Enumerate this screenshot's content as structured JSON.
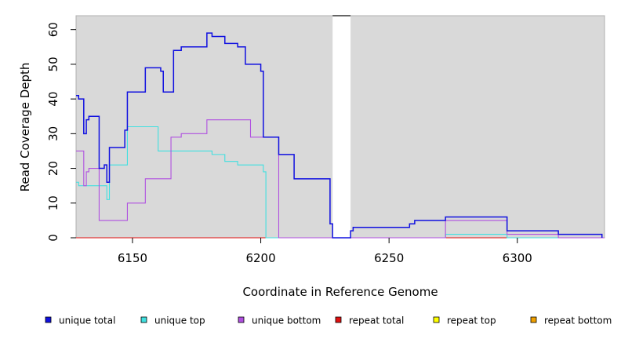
{
  "chart_data": {
    "type": "line",
    "title": "",
    "xlabel": "Coordinate in Reference Genome",
    "ylabel": "Read Coverage Depth",
    "xlim": [
      6128,
      6334
    ],
    "ylim": [
      0,
      64
    ],
    "xticks": [
      6150,
      6200,
      6250,
      6300
    ],
    "yticks": [
      0,
      10,
      20,
      30,
      40,
      50,
      60
    ],
    "background": "#d9d9d9",
    "gap_region": [
      6228,
      6235
    ],
    "grid": false,
    "legend_position": "bottom",
    "series": [
      {
        "name": "unique total",
        "color": "#1010e0",
        "step_points": [
          [
            6128,
            41
          ],
          [
            6129,
            40
          ],
          [
            6130,
            40
          ],
          [
            6131,
            30
          ],
          [
            6132,
            34
          ],
          [
            6133,
            35
          ],
          [
            6137,
            35
          ],
          [
            6137,
            20
          ],
          [
            6139,
            21
          ],
          [
            6140,
            16
          ],
          [
            6141,
            26
          ],
          [
            6147,
            26
          ],
          [
            6147,
            31
          ],
          [
            6148,
            42
          ],
          [
            6155,
            42
          ],
          [
            6155,
            49
          ],
          [
            6160,
            49
          ],
          [
            6161,
            48
          ],
          [
            6162,
            42
          ],
          [
            6165,
            42
          ],
          [
            6166,
            54
          ],
          [
            6169,
            54
          ],
          [
            6169,
            55
          ],
          [
            6179,
            55
          ],
          [
            6179,
            59
          ],
          [
            6181,
            58
          ],
          [
            6186,
            58
          ],
          [
            6186,
            56
          ],
          [
            6191,
            56
          ],
          [
            6191,
            55
          ],
          [
            6194,
            55
          ],
          [
            6194,
            50
          ],
          [
            6200,
            50
          ],
          [
            6200,
            48
          ],
          [
            6201,
            29
          ],
          [
            6207,
            29
          ],
          [
            6207,
            24
          ],
          [
            6213,
            24
          ],
          [
            6213,
            17
          ],
          [
            6227,
            17
          ],
          [
            6227,
            4
          ],
          [
            6228,
            0
          ],
          [
            6235,
            0
          ],
          [
            6235,
            2
          ],
          [
            6236,
            3
          ],
          [
            6258,
            3
          ],
          [
            6258,
            4
          ],
          [
            6260,
            4
          ],
          [
            6260,
            5
          ],
          [
            6272,
            5
          ],
          [
            6272,
            6
          ],
          [
            6296,
            6
          ],
          [
            6296,
            2
          ],
          [
            6316,
            2
          ],
          [
            6316,
            1
          ],
          [
            6333,
            1
          ],
          [
            6333,
            0
          ]
        ]
      },
      {
        "name": "unique top",
        "color": "#40e0e0",
        "step_points": [
          [
            6128,
            16
          ],
          [
            6129,
            15
          ],
          [
            6139,
            15
          ],
          [
            6140,
            11
          ],
          [
            6141,
            21
          ],
          [
            6147,
            21
          ],
          [
            6148,
            32
          ],
          [
            6158,
            32
          ],
          [
            6160,
            31
          ],
          [
            6160,
            25
          ],
          [
            6179,
            25
          ],
          [
            6181,
            24
          ],
          [
            6186,
            24
          ],
          [
            6186,
            22
          ],
          [
            6191,
            22
          ],
          [
            6191,
            21
          ],
          [
            6200,
            21
          ],
          [
            6201,
            19
          ],
          [
            6202,
            0
          ],
          [
            6272,
            0
          ],
          [
            6272,
            1
          ],
          [
            6296,
            1
          ],
          [
            6296,
            0
          ],
          [
            6334,
            0
          ]
        ]
      },
      {
        "name": "unique bottom",
        "color": "#b050e0",
        "step_points": [
          [
            6128,
            25
          ],
          [
            6131,
            25
          ],
          [
            6131,
            15
          ],
          [
            6132,
            19
          ],
          [
            6133,
            20
          ],
          [
            6137,
            20
          ],
          [
            6137,
            5
          ],
          [
            6147,
            5
          ],
          [
            6148,
            10
          ],
          [
            6155,
            10
          ],
          [
            6155,
            17
          ],
          [
            6165,
            17
          ],
          [
            6165,
            29
          ],
          [
            6169,
            29
          ],
          [
            6169,
            30
          ],
          [
            6179,
            30
          ],
          [
            6179,
            34
          ],
          [
            6196,
            34
          ],
          [
            6196,
            29
          ],
          [
            6207,
            29
          ],
          [
            6207,
            0
          ],
          [
            6272,
            0
          ],
          [
            6272,
            5
          ],
          [
            6296,
            5
          ],
          [
            6296,
            1
          ],
          [
            6316,
            1
          ],
          [
            6316,
            0
          ],
          [
            6334,
            0
          ]
        ]
      },
      {
        "name": "repeat total",
        "color": "#e01010",
        "step_points": [
          [
            6128,
            0
          ],
          [
            6334,
            0
          ]
        ]
      },
      {
        "name": "repeat top",
        "color": "#ffff00",
        "step_points": [
          [
            6128,
            0
          ],
          [
            6334,
            0
          ]
        ]
      },
      {
        "name": "repeat bottom",
        "color": "#f0a000",
        "step_points": [
          [
            6128,
            0
          ],
          [
            6202,
            0
          ]
        ]
      }
    ]
  }
}
